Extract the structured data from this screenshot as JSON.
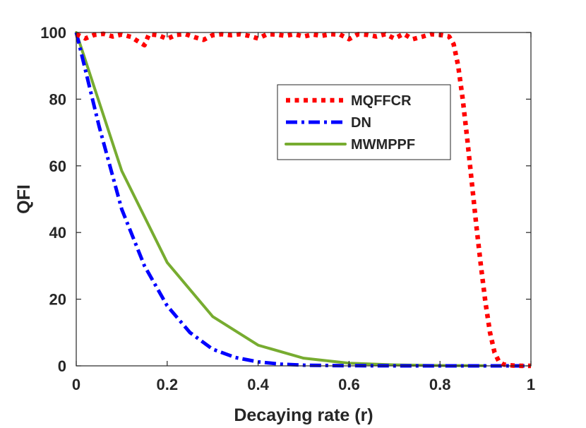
{
  "chart_data": {
    "type": "line",
    "title": "",
    "xlabel": "Decaying rate (r)",
    "ylabel": "QFI",
    "xlim": [
      0,
      1
    ],
    "ylim": [
      0,
      100
    ],
    "xticks": [
      0,
      0.2,
      0.4,
      0.6,
      0.8,
      1
    ],
    "yticks": [
      0,
      20,
      40,
      60,
      80,
      100
    ],
    "xtick_labels": [
      "0",
      "0.2",
      "0.4",
      "0.6",
      "0.8",
      "1"
    ],
    "ytick_labels": [
      "0",
      "20",
      "40",
      "60",
      "80",
      "100"
    ],
    "legend_position": "upper-right-inside",
    "series": [
      {
        "name": "MQFFCR",
        "color": "#ff0000",
        "style": "dotted",
        "x": [
          0,
          0.02,
          0.04,
          0.06,
          0.08,
          0.1,
          0.12,
          0.14,
          0.15,
          0.16,
          0.18,
          0.2,
          0.22,
          0.24,
          0.26,
          0.28,
          0.3,
          0.32,
          0.34,
          0.36,
          0.38,
          0.4,
          0.42,
          0.44,
          0.46,
          0.48,
          0.5,
          0.52,
          0.54,
          0.56,
          0.58,
          0.6,
          0.62,
          0.64,
          0.66,
          0.68,
          0.7,
          0.72,
          0.74,
          0.76,
          0.78,
          0.8,
          0.82,
          0.83,
          0.84,
          0.85,
          0.86,
          0.87,
          0.88,
          0.89,
          0.9,
          0.91,
          0.92,
          0.93,
          0.94,
          0.96,
          0.98,
          1.0
        ],
        "values": [
          99.5,
          98.2,
          99.3,
          99.6,
          98.8,
          99.4,
          98.7,
          97.0,
          96.2,
          99.5,
          99.2,
          98.1,
          99.3,
          99.5,
          98.6,
          97.8,
          99.2,
          99.5,
          99.2,
          99.5,
          99.0,
          98.2,
          99.5,
          99.4,
          99.0,
          99.5,
          98.8,
          99.4,
          99.0,
          99.5,
          99.4,
          98.0,
          99.5,
          99.3,
          98.8,
          99.5,
          98.2,
          99.6,
          98.0,
          98.7,
          99.5,
          99.3,
          98.8,
          96.5,
          90.0,
          80.0,
          68.0,
          55.0,
          42.0,
          30.0,
          19.0,
          10.0,
          4.0,
          1.2,
          0.4,
          0.1,
          0.0,
          0.0
        ]
      },
      {
        "name": "DN",
        "color": "#0000ff",
        "style": "dashdot",
        "x": [
          0,
          0.05,
          0.1,
          0.15,
          0.2,
          0.25,
          0.3,
          0.35,
          0.4,
          0.45,
          0.5,
          0.55,
          0.6,
          0.7,
          0.8,
          0.9,
          1.0
        ],
        "values": [
          100,
          72,
          47,
          30,
          18,
          10,
          5,
          2.5,
          1.2,
          0.5,
          0.2,
          0.1,
          0.05,
          0.01,
          0,
          0,
          0
        ]
      },
      {
        "name": "MWMPPF",
        "color": "#77ac30",
        "style": "solid",
        "x": [
          0,
          0.1,
          0.2,
          0.3,
          0.4,
          0.5,
          0.6,
          0.7,
          0.8,
          0.9
        ],
        "values": [
          100,
          58.5,
          31,
          14.8,
          6.2,
          2.3,
          0.8,
          0.3,
          0.1,
          0.05
        ]
      }
    ]
  }
}
